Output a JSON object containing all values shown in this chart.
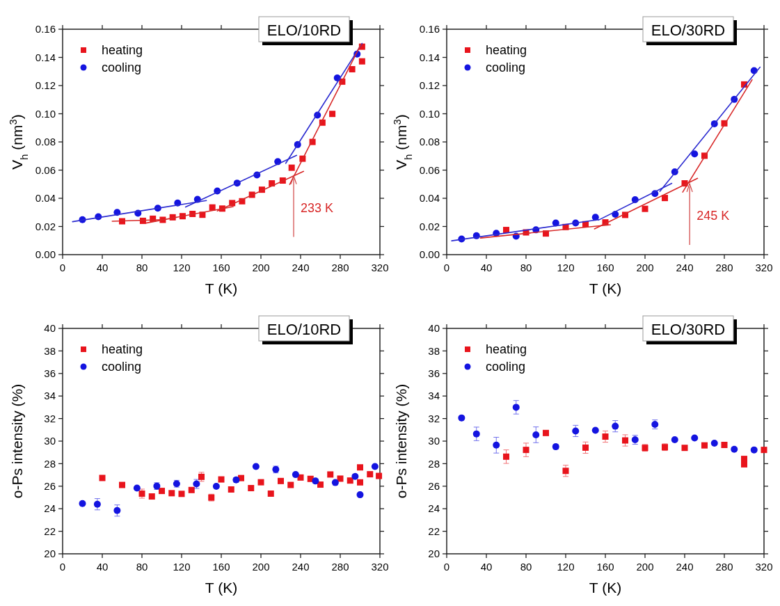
{
  "chart_data": [
    {
      "type": "scatter",
      "title": "ELO/10RD",
      "xlabel": "T (K)",
      "ylabel": "V$_{h}$ (nm$^{3}$)",
      "xlim": [
        0,
        320
      ],
      "xticks": [
        0,
        40,
        80,
        120,
        160,
        200,
        240,
        280,
        320
      ],
      "ylim": [
        0,
        0.16
      ],
      "yticks": [
        {
          "value": 0,
          "label": "0.00"
        },
        {
          "value": 0.02,
          "label": "0.02"
        },
        {
          "value": 0.04,
          "label": "0.04"
        },
        {
          "value": 0.06,
          "label": "0.06"
        },
        {
          "value": 0.08,
          "label": "0.08"
        },
        {
          "value": 0.1,
          "label": "0.10"
        },
        {
          "value": 0.12,
          "label": "0.12"
        },
        {
          "value": 0.14,
          "label": "0.14"
        },
        {
          "value": 0.16,
          "label": "0.16"
        }
      ],
      "legend": "top left",
      "annotations": [
        {
          "text": "233 K",
          "x": 233,
          "y": 0.057
        }
      ],
      "series": [
        {
          "name": "heating",
          "color": "#e8141c",
          "marker": "square",
          "x": [
            60,
            81,
            91,
            101,
            111,
            121,
            131,
            141,
            151,
            161,
            171,
            181,
            191,
            201,
            211,
            222,
            231,
            242,
            252,
            262,
            272,
            282,
            292,
            302,
            302
          ],
          "values": [
            0.0237,
            0.024,
            0.0255,
            0.0247,
            0.0265,
            0.0273,
            0.0289,
            0.0283,
            0.0335,
            0.0327,
            0.0366,
            0.0379,
            0.0425,
            0.0461,
            0.0506,
            0.0526,
            0.0617,
            0.0681,
            0.08,
            0.0937,
            0.0999,
            0.1228,
            0.1316,
            0.1476,
            0.1372
          ]
        },
        {
          "name": "cooling",
          "color": "#1414e0",
          "marker": "circle",
          "x": [
            20,
            36,
            55,
            76,
            96,
            116,
            136,
            156,
            176,
            196,
            217,
            237,
            257,
            277,
            297
          ],
          "values": [
            0.0248,
            0.0269,
            0.03,
            0.0294,
            0.033,
            0.0367,
            0.0392,
            0.0452,
            0.0508,
            0.0565,
            0.066,
            0.0781,
            0.099,
            0.1254,
            0.1424
          ]
        },
        {
          "type": "line",
          "color": "#2a2ad0",
          "x": [
            10,
            145
          ],
          "values": [
            0.0234,
            0.0384
          ]
        },
        {
          "type": "line",
          "color": "#2a2ad0",
          "x": [
            124,
            236
          ],
          "values": [
            0.0338,
            0.0705
          ]
        },
        {
          "type": "line",
          "color": "#2a2ad0",
          "x": [
            225,
            302
          ],
          "values": [
            0.0648,
            0.1499
          ]
        },
        {
          "type": "line",
          "color": "#d82828",
          "x": [
            50,
            100
          ],
          "values": [
            0.0237,
            0.0248
          ]
        },
        {
          "type": "line",
          "color": "#d82828",
          "x": [
            84,
            172
          ],
          "values": [
            0.0224,
            0.0341
          ]
        },
        {
          "type": "line",
          "color": "#d82828",
          "x": [
            156,
            243
          ],
          "values": [
            0.031,
            0.0591
          ]
        },
        {
          "type": "line",
          "color": "#d82828",
          "x": [
            229,
            301
          ],
          "values": [
            0.0498,
            0.1494
          ]
        }
      ]
    },
    {
      "type": "scatter",
      "title": "ELO/30RD",
      "xlabel": "T (K)",
      "ylabel": "V$_{h}$ (nm$^{3}$)",
      "xlim": [
        0,
        320
      ],
      "xticks": [
        0,
        40,
        80,
        120,
        160,
        200,
        240,
        280,
        320
      ],
      "ylim": [
        0,
        0.16
      ],
      "yticks": [
        {
          "value": 0,
          "label": "0.00"
        },
        {
          "value": 0.02,
          "label": "0.02"
        },
        {
          "value": 0.04,
          "label": "0.04"
        },
        {
          "value": 0.06,
          "label": "0.06"
        },
        {
          "value": 0.08,
          "label": "0.08"
        },
        {
          "value": 0.1,
          "label": "0.10"
        },
        {
          "value": 0.12,
          "label": "0.12"
        },
        {
          "value": 0.14,
          "label": "0.14"
        },
        {
          "value": 0.16,
          "label": "0.16"
        }
      ],
      "legend": "top left",
      "annotations": [
        {
          "text": "245 K",
          "x": 245,
          "y": 0.0514
        }
      ],
      "series": [
        {
          "name": "heating",
          "color": "#e8141c",
          "marker": "square",
          "x": [
            60,
            80,
            100,
            120,
            140,
            160,
            180,
            200,
            220,
            240,
            260,
            280,
            300
          ],
          "values": [
            0.0175,
            0.0158,
            0.015,
            0.0196,
            0.0216,
            0.0229,
            0.0282,
            0.0325,
            0.0402,
            0.0506,
            0.0702,
            0.0932,
            0.1208
          ]
        },
        {
          "name": "cooling",
          "color": "#1414e0",
          "marker": "circle",
          "x": [
            15,
            30,
            50,
            70,
            90,
            110,
            130,
            150,
            170,
            190,
            210,
            230,
            250,
            270,
            290,
            310
          ],
          "values": [
            0.0111,
            0.0134,
            0.0152,
            0.0131,
            0.0176,
            0.0225,
            0.0225,
            0.0265,
            0.0286,
            0.039,
            0.0433,
            0.0588,
            0.0715,
            0.0929,
            0.1102,
            0.1306
          ]
        },
        {
          "type": "line",
          "color": "#2a2ad0",
          "x": [
            5,
            153
          ],
          "values": [
            0.0098,
            0.0248
          ]
        },
        {
          "type": "line",
          "color": "#2a2ad0",
          "x": [
            153,
            227
          ],
          "values": [
            0.0245,
            0.0506
          ]
        },
        {
          "type": "line",
          "color": "#2a2ad0",
          "x": [
            215,
            316
          ],
          "values": [
            0.0449,
            0.1331
          ]
        },
        {
          "type": "line",
          "color": "#d82828",
          "x": [
            34,
            165
          ],
          "values": [
            0.0118,
            0.0212
          ]
        },
        {
          "type": "line",
          "color": "#d82828",
          "x": [
            149,
            253
          ],
          "values": [
            0.0183,
            0.0542
          ]
        },
        {
          "type": "line",
          "color": "#d82828",
          "x": [
            238,
            308
          ],
          "values": [
            0.0444,
            0.1241
          ]
        }
      ]
    },
    {
      "type": "scatter",
      "title": "ELO/10RD",
      "xlabel": "T (K)",
      "ylabel": "o-Ps intensity (%)",
      "xlim": [
        0,
        320
      ],
      "xticks": [
        0,
        40,
        80,
        120,
        160,
        200,
        240,
        280,
        320
      ],
      "ylim": [
        20,
        40
      ],
      "yticks": [
        20,
        22,
        24,
        26,
        28,
        30,
        32,
        34,
        36,
        38,
        40
      ],
      "legend": "top left",
      "series": [
        {
          "name": "heating",
          "color": "#e8141c",
          "marker": "square",
          "x": [
            40,
            60,
            80,
            90,
            100,
            110,
            120,
            130,
            140,
            150,
            160,
            170,
            180,
            190,
            200,
            210,
            220,
            230,
            240,
            250,
            260,
            270,
            280,
            290,
            300,
            300,
            310,
            319
          ],
          "values": [
            26.73,
            26.11,
            25.34,
            25.09,
            25.58,
            25.38,
            25.32,
            25.66,
            26.83,
            24.99,
            26.6,
            25.71,
            26.72,
            25.83,
            26.35,
            25.34,
            26.46,
            26.11,
            26.77,
            26.65,
            26.14,
            27.04,
            26.67,
            26.5,
            26.34,
            27.67,
            27.06,
            26.91
          ],
          "errors": [
            null,
            null,
            0.4,
            null,
            null,
            null,
            null,
            null,
            0.4,
            0.3,
            null,
            null,
            null,
            null,
            null,
            null,
            null,
            null,
            null,
            null,
            null,
            null,
            null,
            null,
            null,
            null,
            null,
            null
          ]
        },
        {
          "name": "cooling",
          "color": "#1414e0",
          "marker": "circle",
          "x": [
            20,
            35,
            55,
            75,
            95,
            115,
            135,
            155,
            175,
            195,
            215,
            235,
            255,
            275,
            295,
            300,
            315
          ],
          "values": [
            24.46,
            24.4,
            23.84,
            25.83,
            26.01,
            26.22,
            26.2,
            25.99,
            26.56,
            27.75,
            27.48,
            27.03,
            26.46,
            26.32,
            26.87,
            25.24,
            27.75
          ],
          "errors": [
            null,
            0.5,
            0.5,
            null,
            0.3,
            0.3,
            0.4,
            null,
            0.2,
            null,
            0.3,
            null,
            0.2,
            null,
            null,
            null,
            null
          ]
        }
      ]
    },
    {
      "type": "scatter",
      "title": "ELO/30RD",
      "xlabel": "T (K)",
      "ylabel": "o-Ps intensity (%)",
      "xlim": [
        0,
        320
      ],
      "xticks": [
        0,
        40,
        80,
        120,
        160,
        200,
        240,
        280,
        320
      ],
      "ylim": [
        20,
        40
      ],
      "yticks": [
        20,
        22,
        24,
        26,
        28,
        30,
        32,
        34,
        36,
        38,
        40
      ],
      "legend": "top left",
      "series": [
        {
          "name": "heating",
          "color": "#e8141c",
          "marker": "square",
          "x": [
            60,
            80,
            100,
            120,
            140,
            160,
            180,
            200,
            220,
            240,
            260,
            280,
            300,
            300,
            320
          ],
          "values": [
            28.62,
            29.22,
            30.72,
            27.36,
            29.42,
            30.4,
            30.06,
            29.4,
            29.46,
            29.4,
            29.62,
            29.66,
            28.42,
            27.94,
            29.22
          ],
          "errors": [
            0.6,
            0.6,
            null,
            0.5,
            0.5,
            0.5,
            0.5,
            0.3,
            0.3,
            null,
            null,
            null,
            null,
            null,
            null
          ]
        },
        {
          "name": "cooling",
          "color": "#1414e0",
          "marker": "circle",
          "x": [
            15,
            30,
            50,
            70,
            90,
            110,
            130,
            150,
            170,
            190,
            210,
            230,
            250,
            270,
            290,
            310
          ],
          "values": [
            32.06,
            30.64,
            29.64,
            33.0,
            30.56,
            29.5,
            30.9,
            30.96,
            31.32,
            30.12,
            31.48,
            30.12,
            30.28,
            29.82,
            29.28,
            29.22
          ],
          "errors": [
            null,
            0.6,
            0.7,
            0.6,
            0.7,
            0.2,
            0.5,
            null,
            0.5,
            0.4,
            0.4,
            null,
            null,
            null,
            null,
            null
          ]
        }
      ]
    }
  ]
}
